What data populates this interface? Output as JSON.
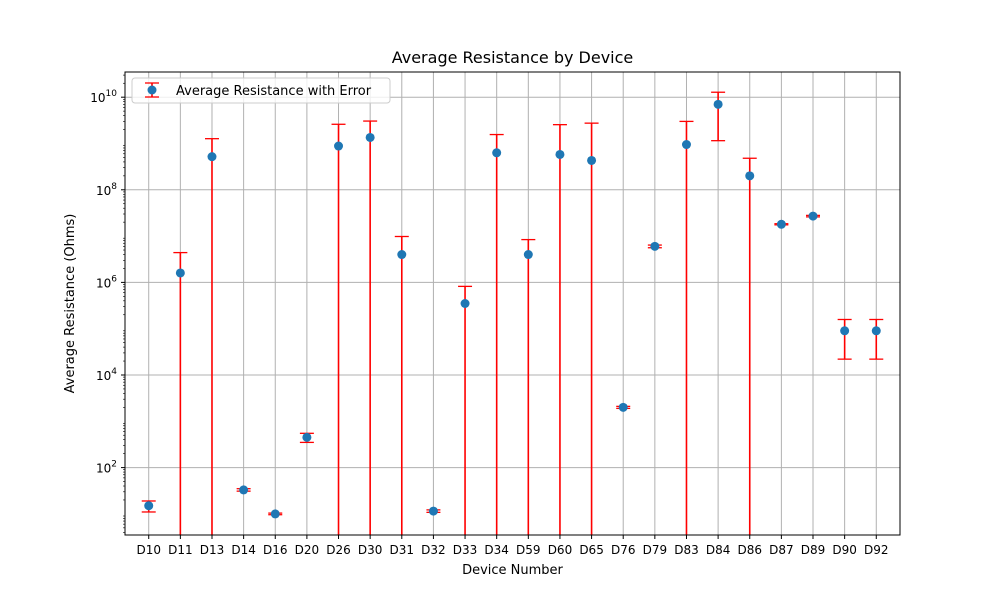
{
  "chart_data": {
    "type": "scatter",
    "title": "Average Resistance by Device",
    "xlabel": "Device Number",
    "ylabel": "Average Resistance (Ohms)",
    "yscale": "log",
    "ylim": [
      3.5,
      35000000000
    ],
    "grid": true,
    "legend_position": "top-left",
    "y_tick_values": [
      100,
      10000,
      1000000,
      100000000,
      10000000000
    ],
    "y_tick_labels": [
      {
        "base": "10",
        "exp": "2"
      },
      {
        "base": "10",
        "exp": "4"
      },
      {
        "base": "10",
        "exp": "6"
      },
      {
        "base": "10",
        "exp": "8"
      },
      {
        "base": "10",
        "exp": "10"
      }
    ],
    "categories": [
      "D10",
      "D11",
      "D13",
      "D14",
      "D16",
      "D20",
      "D26",
      "D30",
      "D31",
      "D32",
      "D33",
      "D34",
      "D59",
      "D60",
      "D65",
      "D76",
      "D79",
      "D83",
      "D84",
      "D86",
      "D87",
      "D89",
      "D90",
      "D92"
    ],
    "series": [
      {
        "name": "Average Resistance with Error",
        "marker_color": "#1f77b4",
        "error_color": "#ff0000",
        "values": [
          15,
          1600000,
          520000000,
          33,
          10,
          450,
          880000000,
          1350000000,
          4000000,
          11.5,
          350000,
          630000000,
          4000000,
          580000000,
          430000000,
          2000,
          6000000,
          950000000,
          7000000000,
          200000000,
          18000000,
          27000000,
          90000,
          90000
        ],
        "error_low": [
          11,
          1,
          1,
          31,
          9.6,
          350,
          1,
          1,
          1,
          10.8,
          1,
          1,
          1,
          1,
          1,
          1900,
          5600000,
          1,
          1150000000,
          1,
          17500000,
          26000000,
          22000,
          22000
        ],
        "error_high": [
          19,
          4400000,
          1270000000,
          35,
          10.4,
          550,
          2600000000,
          3050000000,
          9800000,
          12.2,
          820000,
          1560000000,
          8400000,
          2550000000,
          2750000000,
          2100,
          6400000,
          3000000000,
          12800000000,
          480000000,
          18500000,
          28000000,
          158000,
          158000
        ]
      }
    ]
  }
}
